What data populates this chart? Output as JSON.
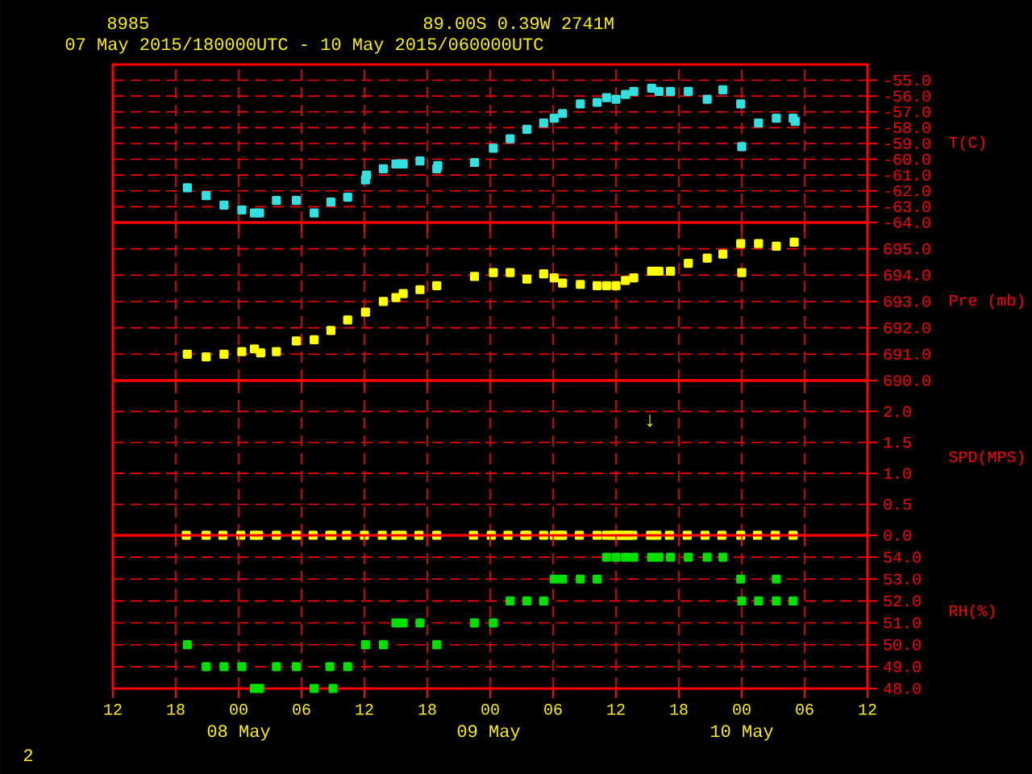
{
  "chart_data": [
    {
      "type": "scatter",
      "title": "8985",
      "subtitle": "07 May 2015/180000UTC - 10 May 2015/060000UTC",
      "annotations": [
        "89.00S    0.39W   2741M"
      ],
      "ylabel": "T(C)",
      "marker": "square",
      "grid": true,
      "tick_labels": "y",
      "xlim": [
        12,
        84
      ],
      "xticks": [
        {
          "value": 12,
          "label": null
        },
        {
          "value": 18,
          "label": null
        },
        {
          "value": 24,
          "label": null
        },
        {
          "value": 30,
          "label": null
        },
        {
          "value": 36,
          "label": null
        },
        {
          "value": 42,
          "label": null
        },
        {
          "value": 48,
          "label": null
        },
        {
          "value": 54,
          "label": null
        },
        {
          "value": 60,
          "label": null
        },
        {
          "value": 66,
          "label": null
        },
        {
          "value": 72,
          "label": null
        },
        {
          "value": 78,
          "label": null
        },
        {
          "value": 84,
          "label": null
        }
      ],
      "ylim": [
        -64,
        -54
      ],
      "yticks": [
        {
          "value": -64,
          "label": "-64.0"
        },
        {
          "value": -63,
          "label": "-63.0"
        },
        {
          "value": -62,
          "label": "-62.0"
        },
        {
          "value": -61,
          "label": "-61.0"
        },
        {
          "value": -60,
          "label": "-60.0"
        },
        {
          "value": -59,
          "label": "-59.0"
        },
        {
          "value": -58,
          "label": "-58.0"
        },
        {
          "value": -57,
          "label": "-57.0"
        },
        {
          "value": -56,
          "label": "-56.0"
        },
        {
          "value": -55,
          "label": "-55.0"
        }
      ],
      "x": [
        19.1,
        20.9,
        22.6,
        24.3,
        25.5,
        26.0,
        27.6,
        29.5,
        31.2,
        32.8,
        34.4,
        36.1,
        36.2,
        37.8,
        39.0,
        39.7,
        41.3,
        42.9,
        43.0,
        46.5,
        48.3,
        49.9,
        51.5,
        53.1,
        54.1,
        54.9,
        56.6,
        58.2,
        59.1,
        60.0,
        60.9,
        61.7,
        63.4,
        64.1,
        65.2,
        66.9,
        68.7,
        70.2,
        71.9,
        72.0,
        73.6,
        75.3,
        76.9,
        77.1
      ],
      "series": [
        {
          "color": "#33e0e0",
          "values": [
            -61.8,
            -62.3,
            -62.9,
            -63.2,
            -63.4,
            -63.4,
            -62.6,
            -62.6,
            -63.4,
            -62.7,
            -62.4,
            -61.3,
            -61.0,
            -60.6,
            -60.3,
            -60.3,
            -60.1,
            -60.6,
            -60.4,
            -60.2,
            -59.3,
            -58.7,
            -58.1,
            -57.7,
            -57.4,
            -57.1,
            -56.5,
            -56.4,
            -56.1,
            -56.2,
            -55.9,
            -55.7,
            -55.5,
            -55.7,
            -55.7,
            -55.7,
            -56.2,
            -55.6,
            -56.5,
            -59.2,
            -57.7,
            -57.4,
            -57.4,
            -57.6
          ]
        }
      ]
    },
    {
      "type": "scatter",
      "ylabel": "Pre (mb)",
      "marker": "square",
      "grid": true,
      "tick_labels": "y",
      "xlim": [
        12,
        84
      ],
      "xticks": [
        {
          "value": 12,
          "label": null
        },
        {
          "value": 18,
          "label": null
        },
        {
          "value": 24,
          "label": null
        },
        {
          "value": 30,
          "label": null
        },
        {
          "value": 36,
          "label": null
        },
        {
          "value": 42,
          "label": null
        },
        {
          "value": 48,
          "label": null
        },
        {
          "value": 54,
          "label": null
        },
        {
          "value": 60,
          "label": null
        },
        {
          "value": 66,
          "label": null
        },
        {
          "value": 72,
          "label": null
        },
        {
          "value": 78,
          "label": null
        },
        {
          "value": 84,
          "label": null
        }
      ],
      "ylim": [
        690,
        696
      ],
      "yticks": [
        {
          "value": 690,
          "label": "690.0"
        },
        {
          "value": 691,
          "label": "691.0"
        },
        {
          "value": 692,
          "label": "692.0"
        },
        {
          "value": 693,
          "label": "693.0"
        },
        {
          "value": 694,
          "label": "694.0"
        },
        {
          "value": 695,
          "label": "695.0"
        }
      ],
      "x": [
        19.1,
        20.9,
        22.6,
        24.3,
        25.5,
        26.1,
        27.6,
        29.5,
        31.2,
        32.8,
        34.4,
        36.1,
        37.8,
        39.0,
        39.7,
        41.3,
        42.9,
        46.5,
        48.3,
        49.9,
        51.5,
        53.1,
        54.1,
        54.9,
        56.6,
        58.2,
        59.1,
        60.0,
        60.9,
        61.7,
        63.4,
        64.1,
        65.2,
        66.9,
        68.7,
        70.2,
        71.9,
        72.0,
        73.6,
        75.3,
        77.0
      ],
      "series": [
        {
          "color": "#ffff00",
          "values": [
            691.0,
            690.9,
            691.0,
            691.1,
            691.2,
            691.05,
            691.1,
            691.5,
            691.55,
            691.9,
            692.3,
            692.6,
            693.0,
            693.15,
            693.3,
            693.45,
            693.6,
            693.95,
            694.1,
            694.1,
            693.85,
            694.05,
            693.9,
            693.7,
            693.65,
            693.6,
            693.6,
            693.6,
            693.8,
            693.9,
            694.15,
            694.15,
            694.15,
            694.45,
            694.65,
            694.8,
            695.2,
            694.1,
            695.2,
            695.1,
            695.25
          ]
        }
      ]
    },
    {
      "type": "scatter",
      "ylabel": "SPD(MPS)",
      "marker": "square",
      "grid": true,
      "tick_labels": "y",
      "xlim": [
        12,
        84
      ],
      "xticks": [
        {
          "value": 12,
          "label": null
        },
        {
          "value": 18,
          "label": null
        },
        {
          "value": 24,
          "label": null
        },
        {
          "value": 30,
          "label": null
        },
        {
          "value": 36,
          "label": null
        },
        {
          "value": 42,
          "label": null
        },
        {
          "value": 48,
          "label": null
        },
        {
          "value": 54,
          "label": null
        },
        {
          "value": 60,
          "label": null
        },
        {
          "value": 66,
          "label": null
        },
        {
          "value": 72,
          "label": null
        },
        {
          "value": 78,
          "label": null
        },
        {
          "value": 84,
          "label": null
        }
      ],
      "ylim": [
        0,
        2.5
      ],
      "yticks": [
        {
          "value": 0,
          "label": "0.0"
        },
        {
          "value": 0.5,
          "label": "0.5"
        },
        {
          "value": 1,
          "label": "1.0"
        },
        {
          "value": 1.5,
          "label": "1.5"
        },
        {
          "value": 2,
          "label": "2.0"
        }
      ],
      "annotations": [
        "↓"
      ],
      "x": [
        19.0,
        20.9,
        22.5,
        24.2,
        25.5,
        25.9,
        27.6,
        29.5,
        31.1,
        32.7,
        32.9,
        34.3,
        36.0,
        37.7,
        39.0,
        39.6,
        41.2,
        42.9,
        46.4,
        48.1,
        49.7,
        51.3,
        51.5,
        53.1,
        54.1,
        54.7,
        54.9,
        56.5,
        58.2,
        59.1,
        59.7,
        60.0,
        60.4,
        60.8,
        61.2,
        61.6,
        63.3,
        63.9,
        65.1,
        66.8,
        68.5,
        70.1,
        71.9,
        73.5,
        75.2,
        76.9
      ],
      "series": [
        {
          "color": "#ffff00",
          "values": [
            0,
            0,
            0,
            0,
            0,
            0,
            0,
            0,
            0,
            0,
            0,
            0,
            0,
            0,
            0,
            0,
            0,
            0,
            0,
            0,
            0,
            0,
            0,
            0,
            0,
            0,
            0,
            0,
            0,
            0,
            0,
            0,
            0,
            0,
            0,
            0,
            0,
            0,
            0,
            0,
            0,
            0,
            0,
            0,
            0,
            0
          ]
        }
      ]
    },
    {
      "type": "scatter",
      "ylabel": "RH(%)",
      "marker": "square",
      "grid": true,
      "xlim": [
        12,
        84
      ],
      "xticks": [
        {
          "value": 12,
          "label": "12"
        },
        {
          "value": 18,
          "label": "18"
        },
        {
          "value": 24,
          "label": "00"
        },
        {
          "value": 30,
          "label": "06"
        },
        {
          "value": 36,
          "label": "12"
        },
        {
          "value": 42,
          "label": "18"
        },
        {
          "value": 48,
          "label": "00"
        },
        {
          "value": 54,
          "label": "06"
        },
        {
          "value": 60,
          "label": "12"
        },
        {
          "value": 66,
          "label": "18"
        },
        {
          "value": 72,
          "label": "00"
        },
        {
          "value": 78,
          "label": "06"
        },
        {
          "value": 84,
          "label": "12"
        }
      ],
      "ylim": [
        48,
        55
      ],
      "yticks": [
        {
          "value": 48,
          "label": "48.0"
        },
        {
          "value": 49,
          "label": "49.0"
        },
        {
          "value": 50,
          "label": "50.0"
        },
        {
          "value": 51,
          "label": "51.0"
        },
        {
          "value": 52,
          "label": "52.0"
        },
        {
          "value": 53,
          "label": "53.0"
        },
        {
          "value": 54,
          "label": "54.0"
        }
      ],
      "annotations": [
        "08 May",
        "09 May",
        "10 May",
        "2"
      ],
      "x": [
        19.1,
        20.9,
        22.6,
        24.3,
        25.5,
        26.0,
        27.6,
        29.5,
        31.2,
        32.7,
        33.0,
        34.4,
        36.1,
        37.8,
        39.0,
        39.7,
        41.3,
        42.9,
        46.5,
        48.3,
        49.9,
        51.5,
        53.1,
        54.1,
        54.9,
        56.6,
        58.2,
        59.1,
        60.0,
        60.9,
        61.7,
        63.4,
        64.1,
        65.2,
        66.9,
        68.7,
        70.2,
        71.9,
        72.0,
        73.6,
        75.3,
        75.3,
        76.9
      ],
      "series": [
        {
          "color": "#00e000",
          "values": [
            50,
            49,
            49,
            49,
            48,
            48,
            49,
            49,
            48,
            49,
            48,
            49,
            50,
            50,
            51,
            51,
            51,
            50,
            51,
            51,
            52,
            52,
            52,
            53,
            53,
            53,
            53,
            54,
            54,
            54,
            54,
            54,
            54,
            54,
            54,
            54,
            54,
            53,
            52,
            52,
            52,
            53,
            52
          ]
        }
      ]
    }
  ]
}
